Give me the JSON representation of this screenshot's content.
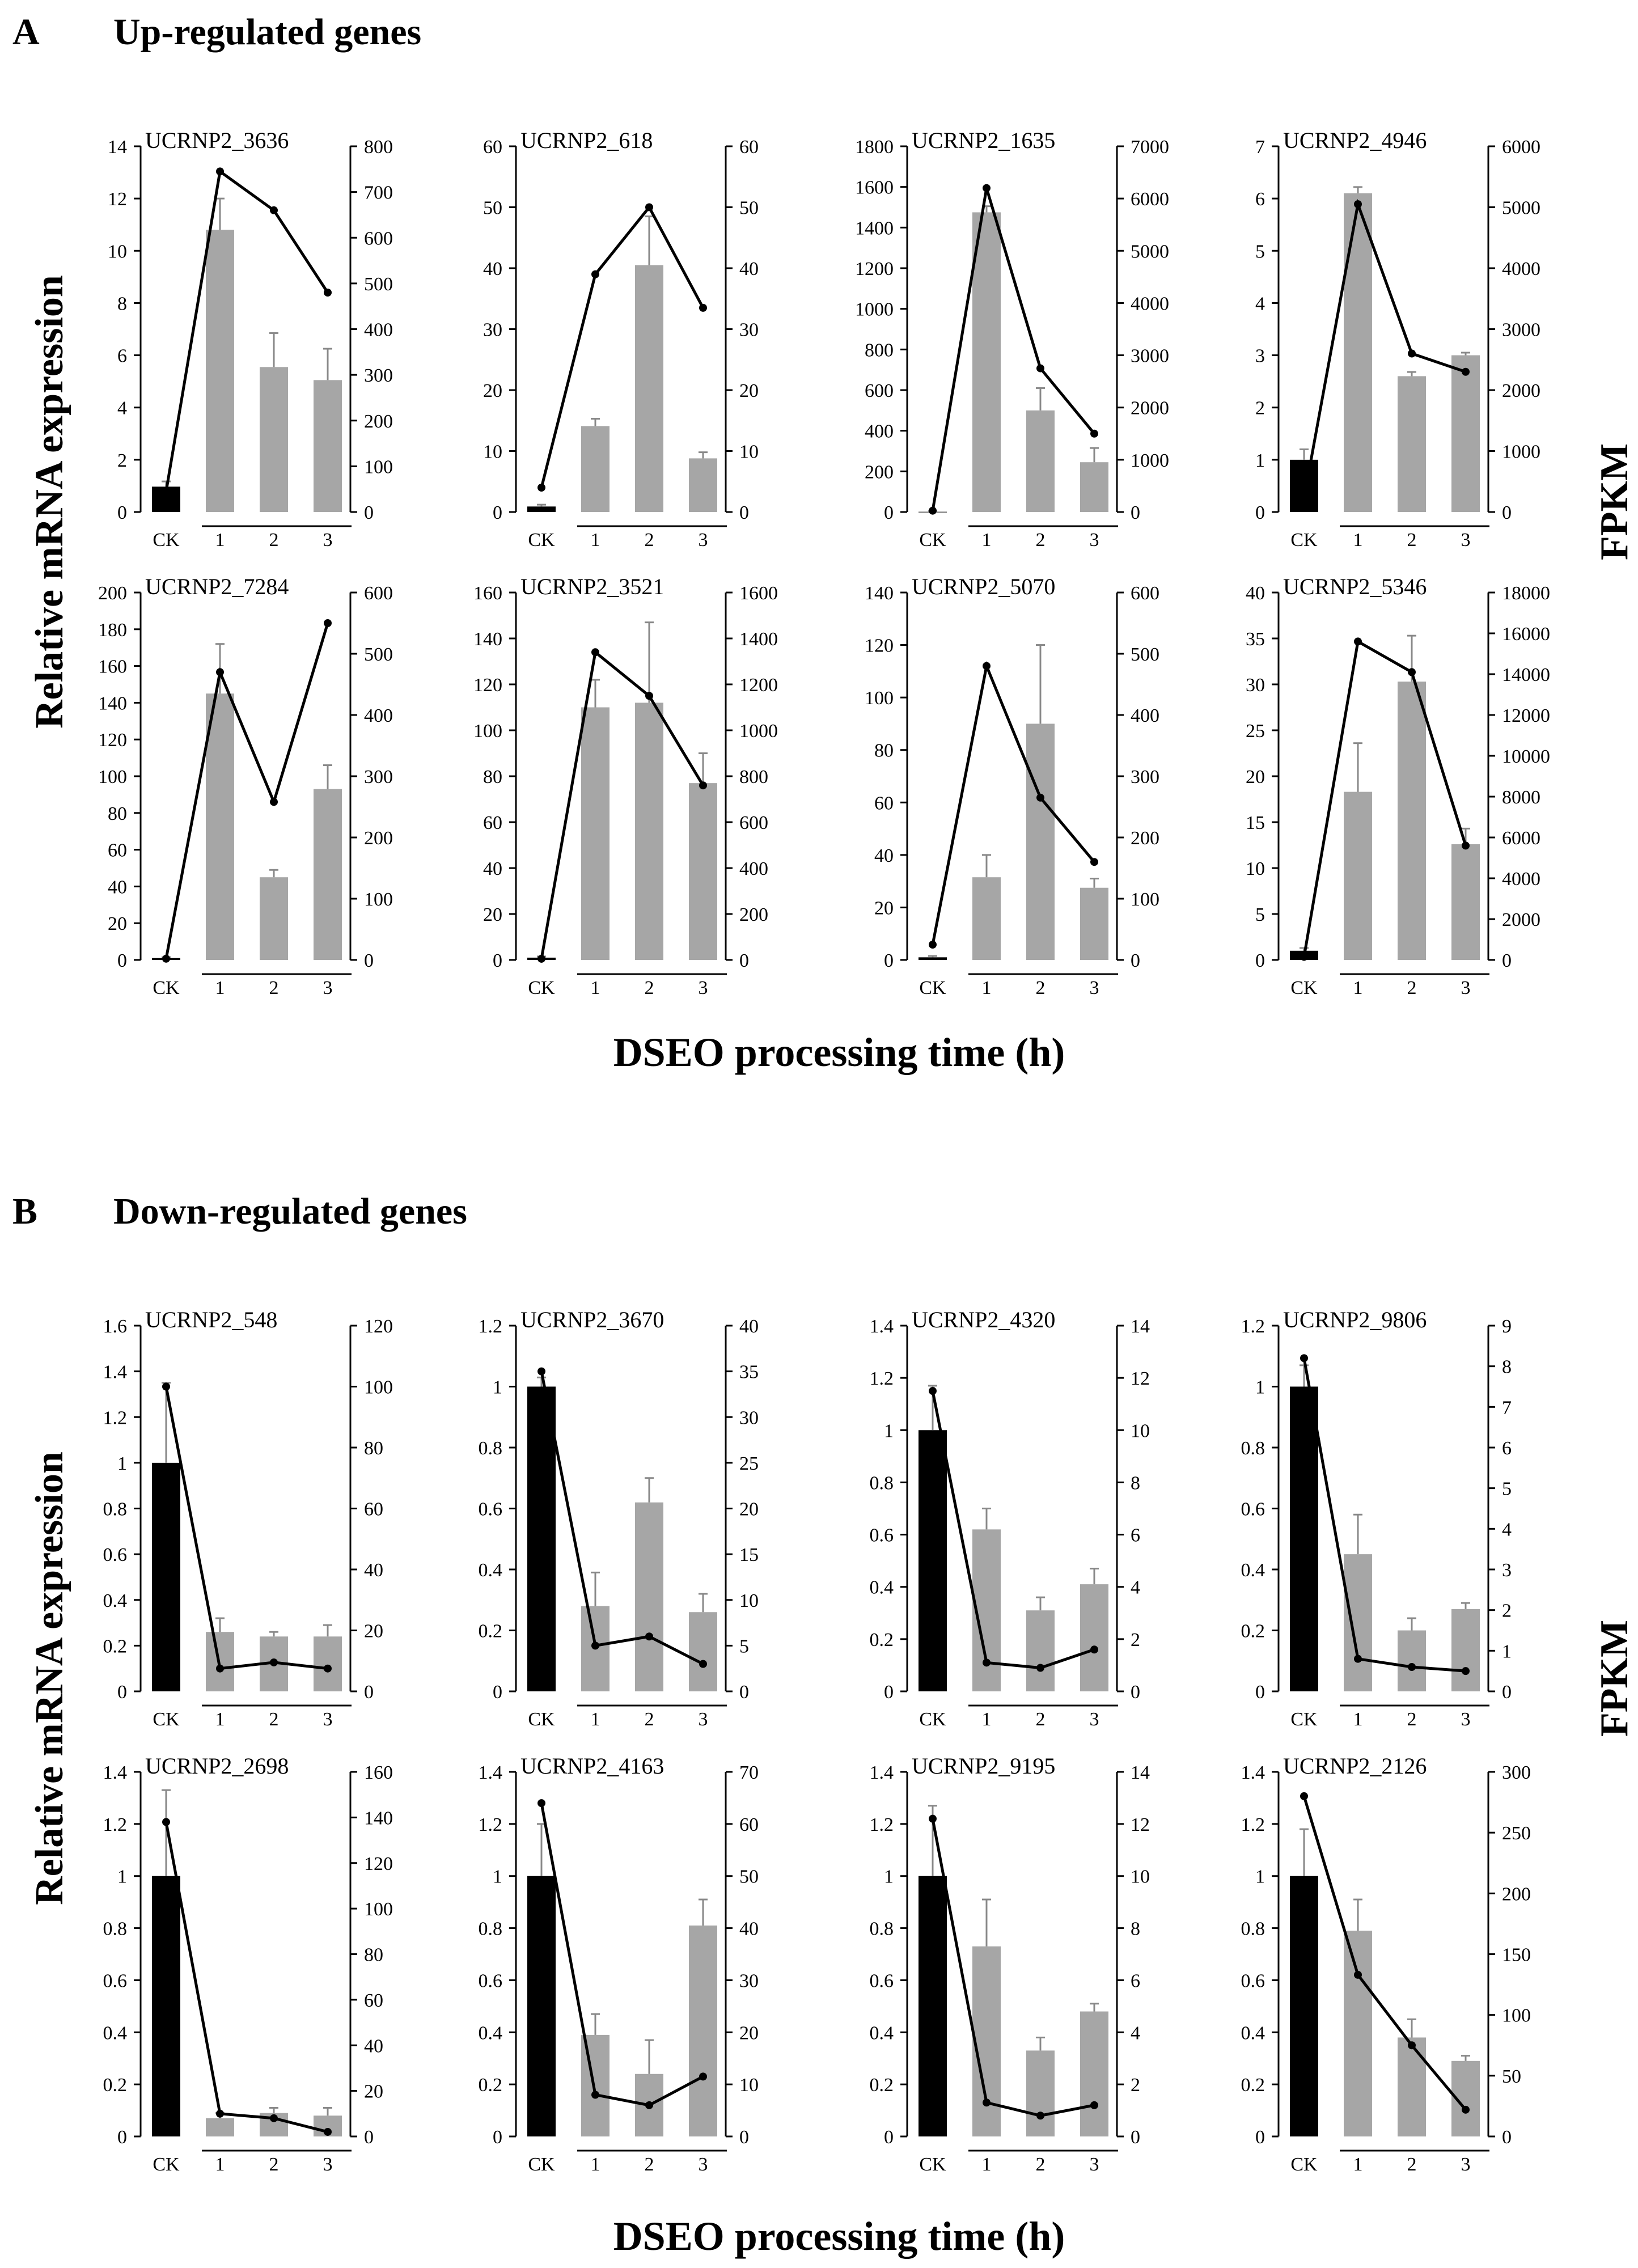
{
  "panel_a": {
    "letter": "A",
    "title": "Up-regulated genes"
  },
  "panel_b": {
    "letter": "B",
    "title": "Down-regulated genes"
  },
  "y_left_label": "Relative mRNA expression",
  "y_right_label": "FPKM",
  "x_label": "DSEO processing time (h)",
  "colors": {
    "ck_bar": "#000000",
    "treated_bar": "#a6a6a6",
    "line": "#000000",
    "axis": "#000000"
  },
  "chart_data": [
    {
      "type": "bar+line",
      "panel": "A",
      "title": "UCRNP2_3636",
      "categories": [
        "CK",
        "1",
        "2",
        "3"
      ],
      "bar_values": [
        0.97,
        10.8,
        5.55,
        5.05
      ],
      "bar_errors": [
        0.2,
        1.2,
        1.3,
        1.2
      ],
      "line_values": [
        45,
        745,
        660,
        480
      ],
      "ylim_left": [
        0,
        14
      ],
      "yticks_left": [
        0,
        2,
        4,
        6,
        8,
        10,
        12,
        14
      ],
      "ylim_right": [
        0,
        800
      ],
      "yticks_right": [
        0,
        100,
        200,
        300,
        400,
        500,
        600,
        700,
        800
      ]
    },
    {
      "type": "bar+line",
      "panel": "A",
      "title": "UCRNP2_618",
      "categories": [
        "CK",
        "1",
        "2",
        "3"
      ],
      "bar_values": [
        0.9,
        14.1,
        40.5,
        8.8
      ],
      "bar_errors": [
        0.3,
        1.2,
        8,
        1
      ],
      "line_values": [
        4,
        39,
        50,
        33.5
      ],
      "ylim_left": [
        0,
        60
      ],
      "yticks_left": [
        0,
        10,
        20,
        30,
        40,
        50,
        60
      ],
      "ylim_right": [
        0,
        60
      ],
      "yticks_right": [
        0,
        10,
        20,
        30,
        40,
        50,
        60
      ]
    },
    {
      "type": "bar+line",
      "panel": "A",
      "title": "UCRNP2_1635",
      "categories": [
        "CK",
        "1",
        "2",
        "3"
      ],
      "bar_values": [
        1,
        1475,
        500,
        245
      ],
      "bar_errors": [
        3,
        30,
        110,
        70
      ],
      "line_values": [
        25,
        6200,
        2750,
        1500
      ],
      "ylim_left": [
        0,
        1800
      ],
      "yticks_left": [
        0,
        200,
        400,
        600,
        800,
        1000,
        1200,
        1400,
        1600,
        1800
      ],
      "ylim_right": [
        0,
        7000
      ],
      "yticks_right": [
        0,
        1000,
        2000,
        3000,
        4000,
        5000,
        6000,
        7000
      ]
    },
    {
      "type": "bar+line",
      "panel": "A",
      "title": "UCRNP2_4946",
      "categories": [
        "CK",
        "1",
        "2",
        "3"
      ],
      "bar_values": [
        1,
        6.1,
        2.6,
        3
      ],
      "bar_errors": [
        0.2,
        0.12,
        0.08,
        0.05
      ],
      "line_values": [
        230,
        5050,
        2600,
        2300
      ],
      "ylim_left": [
        0,
        7
      ],
      "yticks_left": [
        0,
        1,
        2,
        3,
        4,
        5,
        6,
        7
      ],
      "ylim_right": [
        0,
        6000
      ],
      "yticks_right": [
        0,
        1000,
        2000,
        3000,
        4000,
        5000,
        6000
      ]
    },
    {
      "type": "bar+line",
      "panel": "A",
      "title": "UCRNP2_7284",
      "categories": [
        "CK",
        "1",
        "2",
        "3"
      ],
      "bar_values": [
        1,
        145,
        45,
        93
      ],
      "bar_errors": [
        0.5,
        27,
        4,
        13
      ],
      "line_values": [
        2,
        470,
        258,
        550
      ],
      "ylim_left": [
        0,
        200
      ],
      "yticks_left": [
        0,
        20,
        40,
        60,
        80,
        100,
        120,
        140,
        160,
        180,
        200
      ],
      "ylim_right": [
        0,
        600
      ],
      "yticks_right": [
        0,
        100,
        200,
        300,
        400,
        500,
        600
      ]
    },
    {
      "type": "bar+line",
      "panel": "A",
      "title": "UCRNP2_3521",
      "categories": [
        "CK",
        "1",
        "2",
        "3"
      ],
      "bar_values": [
        1,
        110,
        112,
        77
      ],
      "bar_errors": [
        0.5,
        12,
        35,
        13
      ],
      "line_values": [
        5,
        1340,
        1150,
        760
      ],
      "ylim_left": [
        0,
        160
      ],
      "yticks_left": [
        0,
        20,
        40,
        60,
        80,
        100,
        120,
        140,
        160
      ],
      "ylim_right": [
        0,
        1600
      ],
      "yticks_right": [
        0,
        200,
        400,
        600,
        800,
        1000,
        1200,
        1400,
        1600
      ]
    },
    {
      "type": "bar+line",
      "panel": "A",
      "title": "UCRNP2_5070",
      "categories": [
        "CK",
        "1",
        "2",
        "3"
      ],
      "bar_values": [
        1,
        31.5,
        90,
        27.5
      ],
      "bar_errors": [
        0.5,
        8.5,
        30,
        3.5
      ],
      "line_values": [
        25,
        480,
        265,
        160
      ],
      "ylim_left": [
        0,
        140
      ],
      "yticks_left": [
        0,
        20,
        40,
        60,
        80,
        100,
        120,
        140
      ],
      "ylim_right": [
        0,
        600
      ],
      "yticks_right": [
        0,
        100,
        200,
        300,
        400,
        500,
        600
      ]
    },
    {
      "type": "bar+line",
      "panel": "A",
      "title": "UCRNP2_5346",
      "categories": [
        "CK",
        "1",
        "2",
        "3"
      ],
      "bar_values": [
        1,
        18.3,
        30.3,
        12.6
      ],
      "bar_errors": [
        0.3,
        5.3,
        5,
        1.7
      ],
      "line_values": [
        150,
        15600,
        14100,
        5600
      ],
      "ylim_left": [
        0,
        40
      ],
      "yticks_left": [
        0,
        5,
        10,
        15,
        20,
        25,
        30,
        35,
        40
      ],
      "ylim_right": [
        0,
        18000
      ],
      "yticks_right": [
        0,
        2000,
        4000,
        6000,
        8000,
        10000,
        12000,
        14000,
        16000,
        18000
      ]
    },
    {
      "type": "bar+line",
      "panel": "B",
      "title": "UCRNP2_548",
      "categories": [
        "CK",
        "1",
        "2",
        "3"
      ],
      "bar_values": [
        1,
        0.26,
        0.24,
        0.24
      ],
      "bar_errors": [
        0.35,
        0.06,
        0.02,
        0.05
      ],
      "line_values": [
        100,
        7.5,
        9.5,
        7.5
      ],
      "ylim_left": [
        0,
        1.6
      ],
      "yticks_left": [
        "0",
        "0.2",
        "0.4",
        "0.6",
        "0.8",
        "1",
        "1.2",
        "1.4",
        "1.6"
      ],
      "ylim_right": [
        0,
        120
      ],
      "yticks_right": [
        0,
        20,
        40,
        60,
        80,
        100,
        120
      ]
    },
    {
      "type": "bar+line",
      "panel": "B",
      "title": "UCRNP2_3670",
      "categories": [
        "CK",
        "1",
        "2",
        "3"
      ],
      "bar_values": [
        1,
        0.28,
        0.62,
        0.26
      ],
      "bar_errors": [
        0.03,
        0.11,
        0.08,
        0.06
      ],
      "line_values": [
        35,
        5,
        6,
        3
      ],
      "ylim_left": [
        0,
        1.2
      ],
      "yticks_left": [
        "0",
        "0.2",
        "0.4",
        "0.6",
        "0.8",
        "1",
        "1.2"
      ],
      "ylim_right": [
        0,
        40
      ],
      "yticks_right": [
        0,
        5,
        10,
        15,
        20,
        25,
        30,
        35,
        40
      ]
    },
    {
      "type": "bar+line",
      "panel": "B",
      "title": "UCRNP2_4320",
      "categories": [
        "CK",
        "1",
        "2",
        "3"
      ],
      "bar_values": [
        1,
        0.62,
        0.31,
        0.41
      ],
      "bar_errors": [
        0.17,
        0.08,
        0.05,
        0.06
      ],
      "line_values": [
        11.5,
        1.1,
        0.9,
        1.6
      ],
      "ylim_left": [
        0,
        1.4
      ],
      "yticks_left": [
        "0",
        "0.2",
        "0.4",
        "0.6",
        "0.8",
        "1",
        "1.2",
        "1.4"
      ],
      "ylim_right": [
        0,
        14
      ],
      "yticks_right": [
        0,
        2,
        4,
        6,
        8,
        10,
        12,
        14
      ]
    },
    {
      "type": "bar+line",
      "panel": "B",
      "title": "UCRNP2_9806",
      "categories": [
        "CK",
        "1",
        "2",
        "3"
      ],
      "bar_values": [
        1,
        0.45,
        0.2,
        0.27
      ],
      "bar_errors": [
        0.07,
        0.13,
        0.04,
        0.02
      ],
      "line_values": [
        8.2,
        0.8,
        0.6,
        0.5
      ],
      "ylim_left": [
        0,
        1.2
      ],
      "yticks_left": [
        "0",
        "0.2",
        "0.4",
        "0.6",
        "0.8",
        "1",
        "1.2"
      ],
      "ylim_right": [
        0,
        9
      ],
      "yticks_right": [
        0,
        1,
        2,
        3,
        4,
        5,
        6,
        7,
        8,
        9
      ]
    },
    {
      "type": "bar+line",
      "panel": "B",
      "title": "UCRNP2_2698",
      "categories": [
        "CK",
        "1",
        "2",
        "3"
      ],
      "bar_values": [
        1,
        0.07,
        0.09,
        0.08
      ],
      "bar_errors": [
        0.33,
        0.02,
        0.02,
        0.03
      ],
      "line_values": [
        138,
        10,
        8,
        2
      ],
      "ylim_left": [
        0,
        1.4
      ],
      "yticks_left": [
        "0",
        "0.2",
        "0.4",
        "0.6",
        "0.8",
        "1",
        "1.2",
        "1.4"
      ],
      "ylim_right": [
        0,
        160
      ],
      "yticks_right": [
        0,
        20,
        40,
        60,
        80,
        100,
        120,
        140,
        160
      ]
    },
    {
      "type": "bar+line",
      "panel": "B",
      "title": "UCRNP2_4163",
      "categories": [
        "CK",
        "1",
        "2",
        "3"
      ],
      "bar_values": [
        1,
        0.39,
        0.24,
        0.81
      ],
      "bar_errors": [
        0.2,
        0.08,
        0.13,
        0.1
      ],
      "line_values": [
        64,
        8,
        6,
        11.5
      ],
      "ylim_left": [
        0,
        1.4
      ],
      "yticks_left": [
        "0",
        "0.2",
        "0.4",
        "0.6",
        "0.8",
        "1",
        "1.2",
        "1.4"
      ],
      "ylim_right": [
        0,
        70
      ],
      "yticks_right": [
        0,
        10,
        20,
        30,
        40,
        50,
        60,
        70
      ]
    },
    {
      "type": "bar+line",
      "panel": "B",
      "title": "UCRNP2_9195",
      "categories": [
        "CK",
        "1",
        "2",
        "3"
      ],
      "bar_values": [
        1,
        0.73,
        0.33,
        0.48
      ],
      "bar_errors": [
        0.27,
        0.18,
        0.05,
        0.03
      ],
      "line_values": [
        12.2,
        1.3,
        0.8,
        1.2
      ],
      "ylim_left": [
        0,
        1.4
      ],
      "yticks_left": [
        "0",
        "0.2",
        "0.4",
        "0.6",
        "0.8",
        "1",
        "1.2",
        "1.4"
      ],
      "ylim_right": [
        0,
        14
      ],
      "yticks_right": [
        0,
        2,
        4,
        6,
        8,
        10,
        12,
        14
      ]
    },
    {
      "type": "bar+line",
      "panel": "B",
      "title": "UCRNP2_2126",
      "categories": [
        "CK",
        "1",
        "2",
        "3"
      ],
      "bar_values": [
        1,
        0.79,
        0.38,
        0.29
      ],
      "bar_errors": [
        0.18,
        0.12,
        0.07,
        0.02
      ],
      "line_values": [
        280,
        133,
        75,
        22
      ],
      "ylim_left": [
        0,
        1.4
      ],
      "yticks_left": [
        "0",
        "0.2",
        "0.4",
        "0.6",
        "0.8",
        "1",
        "1.2",
        "1.4"
      ],
      "ylim_right": [
        0,
        300
      ],
      "yticks_right": [
        0,
        50,
        100,
        150,
        200,
        250,
        300
      ]
    }
  ]
}
